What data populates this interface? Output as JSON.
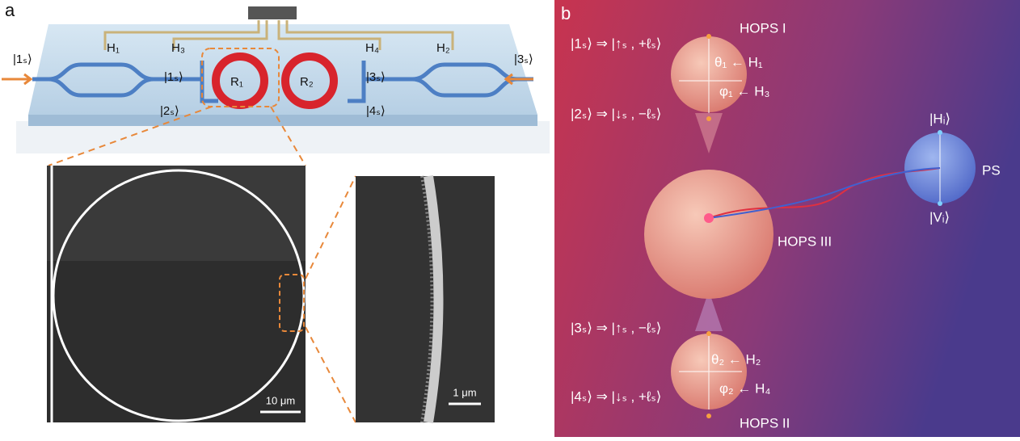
{
  "panel_a": {
    "label": "a",
    "inputs": [
      "|1ₛ⟩",
      "|3ₛ⟩"
    ],
    "heaters": [
      "H₁",
      "H₃",
      "H₄",
      "H₂"
    ],
    "rings": [
      "R₁",
      "R₂"
    ],
    "ports": [
      "|1ₛ⟩",
      "|2ₛ⟩",
      "|3ₛ⟩",
      "|4ₛ⟩"
    ],
    "scale_bars": [
      "10 μm",
      "1 μm"
    ]
  },
  "panel_b": {
    "label": "b",
    "hops_1": {
      "title": "HOPS I",
      "top": "|1ₛ⟩ ⇒ |↑ₛ , +ℓₛ⟩",
      "bottom": "|2ₛ⟩ ⇒ |↓ₛ , −ℓₛ⟩",
      "theta": "θ₁ ← H₁",
      "phi": "φ₁ ← H₃"
    },
    "hops_3": {
      "title": "HOPS III"
    },
    "hops_2": {
      "title": "HOPS II",
      "top": "|3ₛ⟩ ⇒ |↑ₛ , −ℓₛ⟩",
      "bottom": "|4ₛ⟩ ⇒ |↓ₛ , +ℓₛ⟩",
      "theta": "θ₂ ← H₂",
      "phi": "φ₂ ← H₄"
    },
    "ps": {
      "title": "PS",
      "top": "|Hᵢ⟩",
      "bottom": "|Vᵢ⟩"
    }
  }
}
